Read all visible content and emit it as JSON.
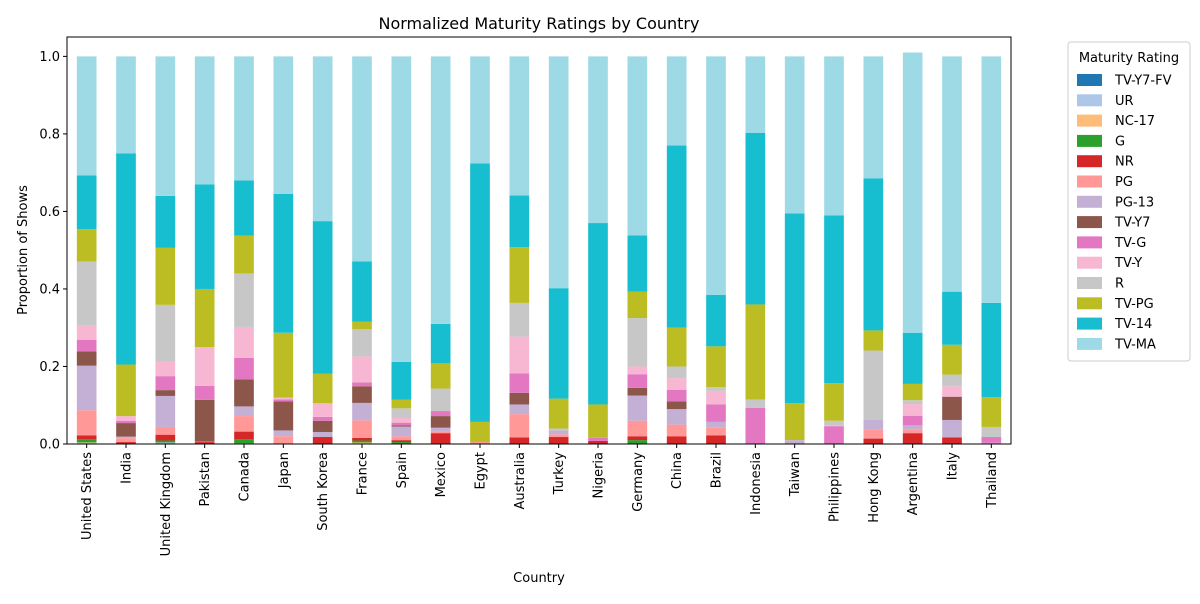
{
  "chart_data": {
    "type": "bar",
    "stacked": true,
    "title": "Normalized Maturity Ratings by Country",
    "xlabel": "Country",
    "ylabel": "Proportion of Shows",
    "ylim": [
      0,
      1.05
    ],
    "yticks": [
      "0.0",
      "0.2",
      "0.4",
      "0.6",
      "0.8",
      "1.0"
    ],
    "grid": false,
    "legend": {
      "title": "Maturity Rating",
      "placement": "outside-right"
    },
    "categories": [
      "United States",
      "India",
      "United Kingdom",
      "Pakistan",
      "Canada",
      "Japan",
      "South Korea",
      "France",
      "Spain",
      "Mexico",
      "Egypt",
      "Australia",
      "Turkey",
      "Nigeria",
      "Germany",
      "China",
      "Brazil",
      "Indonesia",
      "Taiwan",
      "Philippines",
      "Hong Kong",
      "Argentina",
      "Italy",
      "Thailand"
    ],
    "series": [
      {
        "name": "TV-Y7-FV",
        "color": "#1f77b4",
        "values": [
          0.001,
          0.001,
          0.002,
          0,
          0.002,
          0,
          0,
          0,
          0,
          0,
          0,
          0,
          0,
          0,
          0,
          0,
          0,
          0,
          0,
          0,
          0,
          0,
          0,
          0
        ]
      },
      {
        "name": "UR",
        "color": "#aec7e8",
        "values": [
          0.002,
          0,
          0.002,
          0,
          0,
          0,
          0,
          0,
          0,
          0,
          0,
          0,
          0,
          0,
          0,
          0,
          0,
          0,
          0,
          0,
          0,
          0,
          0,
          0
        ]
      },
      {
        "name": "NC-17",
        "color": "#ffbb78",
        "values": [
          0.001,
          0,
          0,
          0,
          0,
          0,
          0,
          0.004,
          0,
          0,
          0,
          0,
          0,
          0,
          0,
          0,
          0,
          0,
          0,
          0,
          0,
          0,
          0,
          0
        ]
      },
      {
        "name": "G",
        "color": "#2ca02c",
        "values": [
          0.008,
          0,
          0.005,
          0,
          0.01,
          0,
          0,
          0.005,
          0.005,
          0,
          0,
          0,
          0,
          0,
          0.01,
          0,
          0,
          0,
          0,
          0,
          0,
          0,
          0,
          0
        ]
      },
      {
        "name": "NR",
        "color": "#d62728",
        "values": [
          0.01,
          0.004,
          0.015,
          0.005,
          0.02,
          0,
          0.018,
          0.007,
          0.005,
          0.028,
          0,
          0.017,
          0.018,
          0.008,
          0.01,
          0.02,
          0.022,
          0,
          0,
          0,
          0.014,
          0.028,
          0.017,
          0
        ]
      },
      {
        "name": "PG",
        "color": "#ff9896",
        "values": [
          0.065,
          0.01,
          0.02,
          0.001,
          0.04,
          0.02,
          0,
          0.045,
          0.01,
          0.004,
          0.005,
          0.06,
          0.007,
          0,
          0.04,
          0.03,
          0.02,
          0,
          0,
          0,
          0.024,
          0.01,
          0,
          0
        ]
      },
      {
        "name": "PG-13",
        "color": "#c5b0d5",
        "values": [
          0.115,
          0.004,
          0.08,
          0,
          0.025,
          0.015,
          0.013,
          0.045,
          0.025,
          0.01,
          0,
          0.025,
          0.01,
          0,
          0.065,
          0.04,
          0.015,
          0,
          0.01,
          0,
          0.025,
          0.01,
          0.045,
          0.003
        ]
      },
      {
        "name": "TV-Y7",
        "color": "#8c564b",
        "values": [
          0.037,
          0.035,
          0.015,
          0.108,
          0.07,
          0.075,
          0.029,
          0.043,
          0.003,
          0.03,
          0,
          0.03,
          0,
          0,
          0.02,
          0.02,
          0,
          0,
          0,
          0,
          0,
          0,
          0.06,
          0
        ]
      },
      {
        "name": "TV-G",
        "color": "#e377c2",
        "values": [
          0.03,
          0.006,
          0.036,
          0.036,
          0.055,
          0.005,
          0.01,
          0.01,
          0.007,
          0.013,
          0,
          0.05,
          0,
          0.008,
          0.035,
          0.03,
          0.045,
          0.093,
          0,
          0.046,
          0,
          0.025,
          0,
          0.015
        ]
      },
      {
        "name": "TV-Y",
        "color": "#f7b6d2",
        "values": [
          0.037,
          0.012,
          0.037,
          0.1,
          0.08,
          0.005,
          0.035,
          0.067,
          0.012,
          0,
          0,
          0.095,
          0,
          0,
          0.02,
          0.03,
          0.035,
          0,
          0,
          0.001,
          0,
          0.03,
          0.027,
          0
        ]
      },
      {
        "name": "R",
        "color": "#c7c7c7",
        "values": [
          0.165,
          0,
          0.147,
          0,
          0.138,
          0,
          0,
          0.07,
          0.025,
          0.058,
          0,
          0.087,
          0.005,
          0,
          0.125,
          0.03,
          0.01,
          0.022,
          0,
          0.013,
          0.178,
          0.01,
          0.03,
          0.026
        ]
      },
      {
        "name": "TV-PG",
        "color": "#bcbd22",
        "values": [
          0.083,
          0.133,
          0.147,
          0.15,
          0.098,
          0.167,
          0.076,
          0.02,
          0.022,
          0.065,
          0.052,
          0.144,
          0.077,
          0.086,
          0.068,
          0.1,
          0.105,
          0.245,
          0.095,
          0.097,
          0.052,
          0.042,
          0.077,
          0.077
        ]
      },
      {
        "name": "TV-14",
        "color": "#17becf",
        "values": [
          0.139,
          0.545,
          0.134,
          0.27,
          0.142,
          0.358,
          0.394,
          0.155,
          0.098,
          0.102,
          0.667,
          0.133,
          0.285,
          0.468,
          0.145,
          0.47,
          0.133,
          0.443,
          0.49,
          0.433,
          0.392,
          0.132,
          0.137,
          0.243
        ]
      },
      {
        "name": "TV-MA",
        "color": "#9edae5",
        "values": [
          0.307,
          0.25,
          0.36,
          0.33,
          0.32,
          0.355,
          0.425,
          0.529,
          0.788,
          0.69,
          0.276,
          0.359,
          0.598,
          0.43,
          0.462,
          0.23,
          0.615,
          0.197,
          0.405,
          0.41,
          0.315,
          0.723,
          0.607,
          0.636
        ]
      }
    ]
  }
}
